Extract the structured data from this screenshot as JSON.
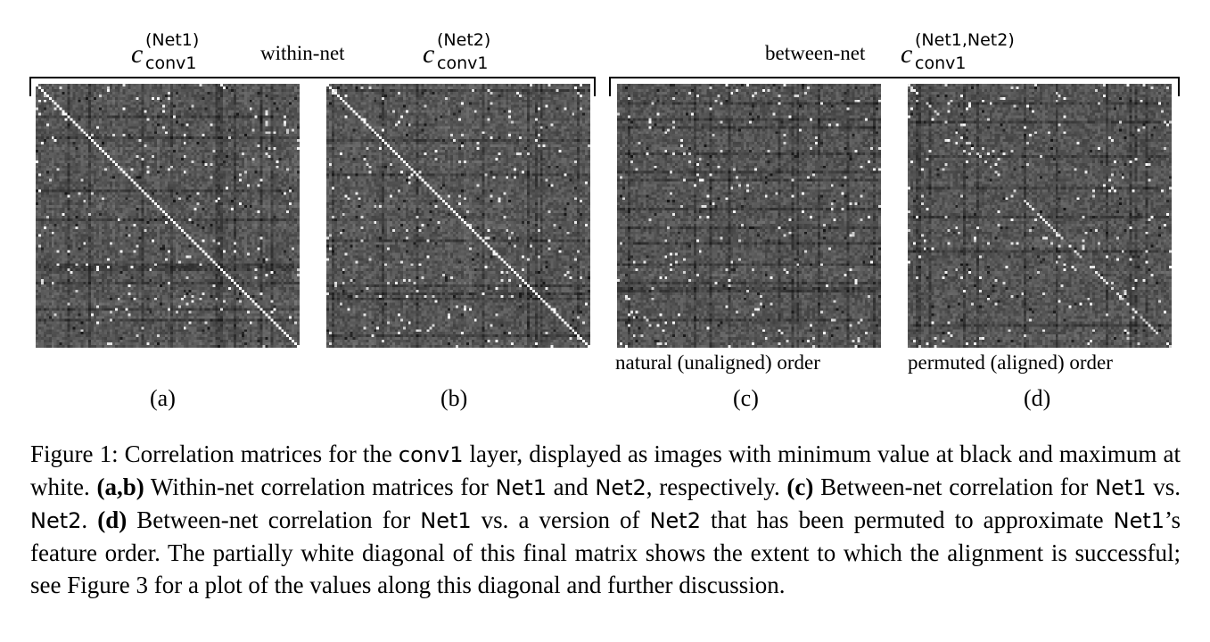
{
  "header": {
    "c_net1": {
      "base": "c",
      "sup": "(Net1)",
      "sub": "conv1"
    },
    "within_net": "within-net",
    "c_net2": {
      "base": "c",
      "sup": "(Net2)",
      "sub": "conv1"
    },
    "between_net": "between-net",
    "c_between": {
      "base": "c",
      "sup": "(Net1,Net2)",
      "sub": "conv1"
    }
  },
  "panels": [
    {
      "id": "a",
      "label": "(a)",
      "order_label": "",
      "diagonal": 1.0
    },
    {
      "id": "b",
      "label": "(b)",
      "order_label": "",
      "diagonal": 1.0
    },
    {
      "id": "c",
      "label": "(c)",
      "order_label": "natural (unaligned) order",
      "diagonal": 0.0
    },
    {
      "id": "d",
      "label": "(d)",
      "order_label": "permuted (aligned) order",
      "diagonal": 0.6
    }
  ],
  "caption": {
    "s1": "Figure 1: Correlation matrices for the ",
    "conv1": "conv1",
    "s2": " layer, displayed as images with minimum value at black and maximum at white. ",
    "ab": "(a,b)",
    "s3": " Within-net correlation matrices for ",
    "net1_a": "Net1",
    "s4": " and ",
    "net2_a": "Net2",
    "s5": ", respectively. ",
    "c": "(c)",
    "s6": " Between-net correlation for ",
    "net1_b": "Net1",
    "s7": " vs. ",
    "net2_b": "Net2",
    "s8": ". ",
    "d": "(d)",
    "s9": " Between-net correlation for ",
    "net1_c": "Net1",
    "s10": " vs. a version of ",
    "net2_c": "Net2",
    "s11": " that has been permuted to approximate ",
    "net1_d": "Net1",
    "s12": "’s feature order. The partially white diagonal of this final matrix shows the extent to which the alignment is successful; see Figure 3 for a plot of the values along this diagonal and further discussion."
  },
  "colors": {
    "matrix_base": "#555555",
    "text": "#000000",
    "background": "#ffffff"
  }
}
